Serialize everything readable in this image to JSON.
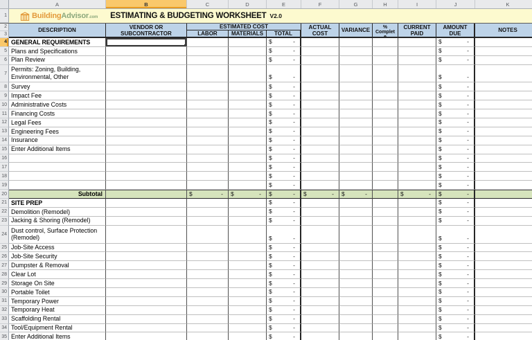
{
  "column_strip": {
    "letters": [
      "A",
      "B",
      "C",
      "D",
      "E",
      "F",
      "G",
      "H",
      "I",
      "J",
      "K"
    ],
    "selected": "B"
  },
  "banner": {
    "row_num": "1",
    "logo": {
      "icon": "building-columns-icon",
      "brand_part1": "Building",
      "brand_part2": "Advisor",
      "brand_suffix": ".com"
    },
    "title": "ESTIMATING & BUDGETING WORKSHEET",
    "version": "V2.0"
  },
  "header": {
    "row_nums": [
      "2",
      "3"
    ],
    "description": "DESCRIPTION",
    "vendor_line1": "VENDOR  OR",
    "vendor_line2": "SUBCONTRACTOR",
    "estimated_cost": "ESTIMATED COST",
    "labor": "LABOR",
    "materials": "MATERIALS",
    "total": "TOTAL",
    "actual_line1": "ACTUAL",
    "actual_line2": "COST",
    "variance": "VARIANCE",
    "pct_complete": "% Complete",
    "current_line1": "CURRENT",
    "current_line2": "PAID",
    "amount_line1": "AMOUNT",
    "amount_line2": "DUE",
    "notes": "NOTES"
  },
  "money": {
    "symbol": "$",
    "value": "-"
  },
  "rows": [
    {
      "num": "4",
      "label": "GENERAL REQUIREMENTS",
      "style": "section",
      "money": [
        "E",
        "J"
      ],
      "selected": "B"
    },
    {
      "num": "5",
      "label": "Plans and Specifications",
      "style": "item",
      "money": [
        "E",
        "J"
      ]
    },
    {
      "num": "6",
      "label": "Plan Review",
      "style": "item",
      "money": [
        "E",
        "J"
      ]
    },
    {
      "num": "7",
      "label": "Permits: Zoning, Building, Environmental, Other",
      "style": "item",
      "tall": true,
      "money": [
        "E",
        "J"
      ]
    },
    {
      "num": "8",
      "label": "Survey",
      "style": "item",
      "money": [
        "E",
        "J"
      ]
    },
    {
      "num": "9",
      "label": "Impact Fee",
      "style": "item",
      "money": [
        "E",
        "J"
      ]
    },
    {
      "num": "10",
      "label": "Administrative Costs",
      "style": "item",
      "money": [
        "E",
        "J"
      ]
    },
    {
      "num": "11",
      "label": "Financing Costs",
      "style": "item",
      "money": [
        "E",
        "J"
      ]
    },
    {
      "num": "12",
      "label": "Legal Fees",
      "style": "item",
      "money": [
        "E",
        "J"
      ]
    },
    {
      "num": "13",
      "label": "Engineering Fees",
      "style": "item",
      "money": [
        "E",
        "J"
      ]
    },
    {
      "num": "14",
      "label": "Insurance",
      "style": "item",
      "money": [
        "E",
        "J"
      ]
    },
    {
      "num": "15",
      "label": "Enter Additional Items",
      "style": "item",
      "money": [
        "E",
        "J"
      ]
    },
    {
      "num": "16",
      "label": "",
      "style": "item",
      "money": [
        "E",
        "J"
      ]
    },
    {
      "num": "17",
      "label": "",
      "style": "item",
      "money": [
        "E",
        "J"
      ]
    },
    {
      "num": "18",
      "label": "",
      "style": "item",
      "money": [
        "E",
        "J"
      ]
    },
    {
      "num": "19",
      "label": "",
      "style": "item",
      "money": [
        "E",
        "J"
      ]
    },
    {
      "num": "20",
      "label": "Subtotal",
      "style": "subtotal",
      "money": [
        "C",
        "D",
        "E",
        "F",
        "G",
        "I",
        "J"
      ]
    },
    {
      "num": "21",
      "label": "SITE PREP",
      "style": "section",
      "money": [
        "E",
        "J"
      ]
    },
    {
      "num": "22",
      "label": "Demolition (Remodel)",
      "style": "item",
      "money": [
        "E",
        "J"
      ]
    },
    {
      "num": "23",
      "label": "Jacking & Shoring (Remodel)",
      "style": "item",
      "money": [
        "E",
        "J"
      ]
    },
    {
      "num": "24",
      "label": "Dust control, Surface Protection (Remodel)",
      "style": "item",
      "tall": true,
      "money": [
        "E",
        "J"
      ]
    },
    {
      "num": "25",
      "label": "Job-Site Access",
      "style": "item",
      "money": [
        "E",
        "J"
      ]
    },
    {
      "num": "26",
      "label": "Job-Site Security",
      "style": "item",
      "money": [
        "E",
        "J"
      ]
    },
    {
      "num": "27",
      "label": "Dumpster & Removal",
      "style": "item",
      "money": [
        "E",
        "J"
      ]
    },
    {
      "num": "28",
      "label": "Clear Lot",
      "style": "item",
      "money": [
        "E",
        "J"
      ]
    },
    {
      "num": "29",
      "label": "Storage On Site",
      "style": "item",
      "money": [
        "E",
        "J"
      ]
    },
    {
      "num": "30",
      "label": "Portable Toilet",
      "style": "item",
      "money": [
        "E",
        "J"
      ]
    },
    {
      "num": "31",
      "label": "Temporary Power",
      "style": "item",
      "money": [
        "E",
        "J"
      ]
    },
    {
      "num": "32",
      "label": "Temporary Heat",
      "style": "item",
      "money": [
        "E",
        "J"
      ]
    },
    {
      "num": "33",
      "label": "Scaffolding Rental",
      "style": "item",
      "money": [
        "E",
        "J"
      ]
    },
    {
      "num": "34",
      "label": "Tool/Equipment Rental",
      "style": "item",
      "money": [
        "E",
        "J"
      ]
    },
    {
      "num": "35",
      "label": "Enter Additional Items",
      "style": "item",
      "money": [
        "E",
        "J"
      ]
    }
  ],
  "colors": {
    "banner_bg": "#FDFACF",
    "header_bg": "#BDD3E8",
    "subtotal_bg": "#D6E4BC",
    "select_hdr_bg": "#FAC86B",
    "select_hdr_accent": "#E89C23",
    "brand_orange": "#E39A3B",
    "brand_green": "#8CA87C"
  }
}
